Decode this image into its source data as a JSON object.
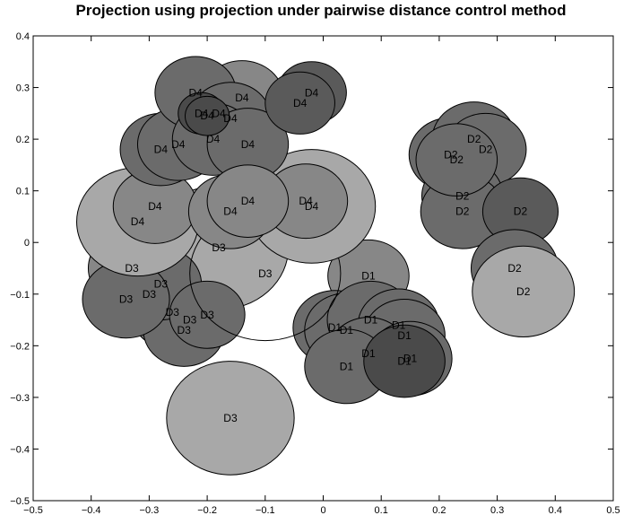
{
  "chart_data": {
    "type": "scatter",
    "title": "Projection using projection under pairwise distance control method",
    "xlabel": "",
    "ylabel": "",
    "xlim": [
      -0.5,
      0.5
    ],
    "ylim": [
      -0.5,
      0.4
    ],
    "xticks": [
      -0.5,
      -0.4,
      -0.3,
      -0.2,
      -0.1,
      0,
      0.1,
      0.2,
      0.3,
      0.4,
      0.5
    ],
    "yticks": [
      -0.5,
      -0.4,
      -0.3,
      -0.2,
      -0.1,
      0,
      0.1,
      0.2,
      0.3,
      0.4
    ],
    "xtick_labels": [
      "−0.5",
      "−0.4",
      "−0.3",
      "−0.2",
      "−0.1",
      "0",
      "0.1",
      "0.2",
      "0.3",
      "0.4",
      "0.5"
    ],
    "ytick_labels": [
      "−0.5",
      "−0.4",
      "−0.3",
      "−0.2",
      "−0.1",
      "0",
      "0.1",
      "0.2",
      "0.3",
      "0.4"
    ],
    "grid": false,
    "legend": "none",
    "colors": {
      "light": "#a8a8a8",
      "mid": "#878787",
      "dark": "#6b6b6b",
      "darker": "#5a5a5a",
      "darkest": "#4a4a4a",
      "outline": "#000000",
      "open": "none"
    },
    "series": [
      {
        "points": [
          {
            "label": "D1",
            "x": 0.078,
            "y": -0.065,
            "r": 0.07,
            "shade": "mid"
          },
          {
            "label": "D1",
            "x": 0.02,
            "y": -0.165,
            "r": 0.072,
            "shade": "dark"
          },
          {
            "label": "D1",
            "x": 0.04,
            "y": -0.17,
            "r": 0.072,
            "shade": "dark"
          },
          {
            "label": "D1",
            "x": 0.082,
            "y": -0.15,
            "r": 0.075,
            "shade": "dark"
          },
          {
            "label": "D1",
            "x": 0.13,
            "y": -0.16,
            "r": 0.07,
            "shade": "dark"
          },
          {
            "label": "D1",
            "x": 0.14,
            "y": -0.18,
            "r": 0.07,
            "shade": "dark"
          },
          {
            "label": "D1",
            "x": 0.078,
            "y": -0.215,
            "r": 0.07,
            "shade": "dark"
          },
          {
            "label": "D1",
            "x": 0.04,
            "y": -0.24,
            "r": 0.072,
            "shade": "dark"
          },
          {
            "label": "D1",
            "x": 0.15,
            "y": -0.225,
            "r": 0.072,
            "shade": "dark"
          },
          {
            "label": "D1",
            "x": 0.14,
            "y": -0.23,
            "r": 0.07,
            "shade": "darkest"
          },
          {
            "label": "D2",
            "x": 0.22,
            "y": 0.17,
            "r": 0.072,
            "shade": "dark"
          },
          {
            "label": "D2",
            "x": 0.26,
            "y": 0.2,
            "r": 0.072,
            "shade": "dark"
          },
          {
            "label": "D2",
            "x": 0.28,
            "y": 0.18,
            "r": 0.07,
            "shade": "dark"
          },
          {
            "label": "D2",
            "x": 0.24,
            "y": 0.09,
            "r": 0.07,
            "shade": "dark"
          },
          {
            "label": "D2",
            "x": 0.24,
            "y": 0.06,
            "r": 0.072,
            "shade": "dark"
          },
          {
            "label": "D2",
            "x": 0.23,
            "y": 0.16,
            "r": 0.07,
            "shade": "dark"
          },
          {
            "label": "D2",
            "x": 0.34,
            "y": 0.06,
            "r": 0.065,
            "shade": "darker"
          },
          {
            "label": "D2",
            "x": 0.33,
            "y": -0.05,
            "r": 0.075,
            "shade": "dark"
          },
          {
            "label": "D2",
            "x": 0.345,
            "y": -0.095,
            "r": 0.088,
            "shade": "light"
          },
          {
            "label": "D3",
            "x": -0.16,
            "y": -0.34,
            "r": 0.11,
            "shade": "light"
          },
          {
            "label": "D3",
            "x": -0.18,
            "y": -0.01,
            "r": 0.12,
            "shade": "light"
          },
          {
            "label": "D3",
            "x": -0.33,
            "y": -0.05,
            "r": 0.075,
            "shade": "mid"
          },
          {
            "label": "D3",
            "x": -0.3,
            "y": -0.1,
            "r": 0.072,
            "shade": "dark"
          },
          {
            "label": "D3",
            "x": -0.26,
            "y": -0.135,
            "r": 0.072,
            "shade": "dark"
          },
          {
            "label": "D3",
            "x": -0.23,
            "y": -0.15,
            "r": 0.072,
            "shade": "dark"
          },
          {
            "label": "D3",
            "x": -0.24,
            "y": -0.17,
            "r": 0.07,
            "shade": "dark"
          },
          {
            "label": "D3",
            "x": -0.28,
            "y": -0.08,
            "r": 0.07,
            "shade": "dark"
          },
          {
            "label": "D3",
            "x": -0.34,
            "y": -0.11,
            "r": 0.075,
            "shade": "dark"
          },
          {
            "label": "D3",
            "x": -0.2,
            "y": -0.14,
            "r": 0.065,
            "shade": "dark"
          },
          {
            "label": "D3",
            "x": -0.1,
            "y": -0.06,
            "r": 0.13,
            "shade": "open"
          },
          {
            "label": "D4",
            "x": -0.02,
            "y": 0.07,
            "r": 0.11,
            "shade": "light"
          },
          {
            "label": "D4",
            "x": -0.32,
            "y": 0.04,
            "r": 0.105,
            "shade": "light"
          },
          {
            "label": "D4",
            "x": -0.29,
            "y": 0.07,
            "r": 0.072,
            "shade": "mid"
          },
          {
            "label": "D4",
            "x": -0.28,
            "y": 0.18,
            "r": 0.07,
            "shade": "dark"
          },
          {
            "label": "D4",
            "x": -0.25,
            "y": 0.19,
            "r": 0.07,
            "shade": "dark"
          },
          {
            "label": "D4",
            "x": -0.18,
            "y": 0.25,
            "r": 0.072,
            "shade": "mid"
          },
          {
            "label": "D4",
            "x": -0.14,
            "y": 0.28,
            "r": 0.072,
            "shade": "mid"
          },
          {
            "label": "D4",
            "x": -0.22,
            "y": 0.29,
            "r": 0.07,
            "shade": "dark"
          },
          {
            "label": "D4",
            "x": -0.16,
            "y": 0.24,
            "r": 0.07,
            "shade": "dark"
          },
          {
            "label": "D4",
            "x": -0.19,
            "y": 0.2,
            "r": 0.07,
            "shade": "dark"
          },
          {
            "label": "D4",
            "x": -0.13,
            "y": 0.19,
            "r": 0.07,
            "shade": "dark"
          },
          {
            "label": "D4",
            "x": -0.21,
            "y": 0.25,
            "r": 0.04,
            "shade": "darkest"
          },
          {
            "label": "D4",
            "x": -0.2,
            "y": 0.245,
            "r": 0.038,
            "shade": "darkest"
          },
          {
            "label": "D4",
            "x": -0.02,
            "y": 0.29,
            "r": 0.06,
            "shade": "darker"
          },
          {
            "label": "D4",
            "x": -0.04,
            "y": 0.27,
            "r": 0.06,
            "shade": "darker"
          },
          {
            "label": "D4",
            "x": -0.16,
            "y": 0.06,
            "r": 0.072,
            "shade": "mid"
          },
          {
            "label": "D4",
            "x": -0.03,
            "y": 0.08,
            "r": 0.072,
            "shade": "mid"
          },
          {
            "label": "D4",
            "x": -0.13,
            "y": 0.08,
            "r": 0.07,
            "shade": "mid"
          }
        ]
      }
    ]
  }
}
